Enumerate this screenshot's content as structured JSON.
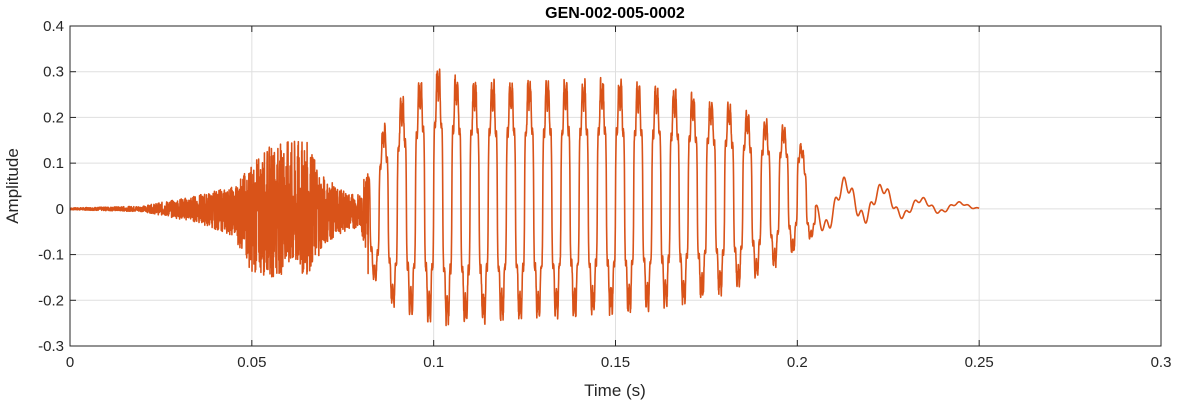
{
  "chart_data": {
    "type": "line",
    "title": "GEN-002-005-0002",
    "xlabel": "Time (s)",
    "ylabel": "Amplitude",
    "xlim": [
      0,
      0.3
    ],
    "ylim": [
      -0.3,
      0.4
    ],
    "xticks": [
      0,
      0.05,
      0.1,
      0.15,
      0.2,
      0.25,
      0.3
    ],
    "xtick_labels": [
      "0",
      "0.05",
      "0.1",
      "0.15",
      "0.2",
      "0.25",
      "0.3"
    ],
    "yticks": [
      -0.3,
      -0.2,
      -0.1,
      0,
      0.1,
      0.2,
      0.3,
      0.4
    ],
    "ytick_labels": [
      "-0.3",
      "-0.2",
      "-0.1",
      "0",
      "0.1",
      "0.2",
      "0.3",
      "0.4"
    ],
    "grid": true,
    "series": [
      {
        "color": "#D95319",
        "x_start": 0,
        "x_end": 0.25,
        "envelope": {
          "t": [
            0,
            0.02,
            0.035,
            0.045,
            0.05,
            0.055,
            0.06,
            0.065,
            0.07,
            0.075,
            0.08,
            0.082,
            0.09,
            0.1,
            0.11,
            0.12,
            0.13,
            0.14,
            0.15,
            0.16,
            0.17,
            0.18,
            0.19,
            0.2,
            0.205,
            0.21,
            0.22,
            0.23,
            0.24,
            0.25
          ],
          "upper": [
            0.002,
            0.006,
            0.03,
            0.05,
            0.1,
            0.14,
            0.15,
            0.15,
            0.07,
            0.04,
            0.03,
            0.13,
            0.25,
            0.33,
            0.3,
            0.3,
            0.3,
            0.3,
            0.3,
            0.29,
            0.27,
            0.25,
            0.21,
            0.18,
            0.05,
            0.07,
            0.07,
            0.03,
            0.02,
            0.01
          ],
          "lower": [
            -0.002,
            -0.006,
            -0.03,
            -0.06,
            -0.14,
            -0.15,
            -0.14,
            -0.15,
            -0.08,
            -0.05,
            -0.04,
            -0.15,
            -0.24,
            -0.27,
            -0.27,
            -0.26,
            -0.26,
            -0.25,
            -0.25,
            -0.24,
            -0.22,
            -0.2,
            -0.16,
            -0.1,
            -0.06,
            -0.05,
            -0.03,
            -0.02,
            -0.01,
            0.0
          ]
        }
      }
    ]
  }
}
